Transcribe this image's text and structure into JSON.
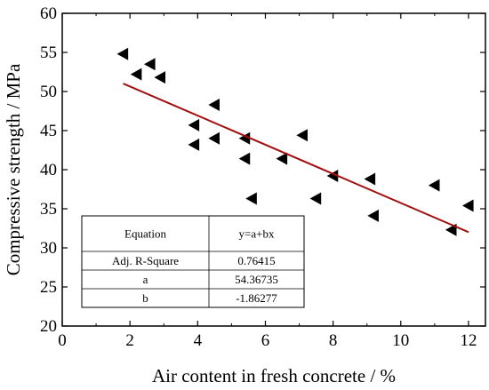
{
  "chart_data": {
    "type": "scatter",
    "xlabel": "Air content in fresh concrete / %",
    "ylabel": "Compressive strength / MPa",
    "xlim": [
      0,
      12.5
    ],
    "ylim": [
      20,
      60
    ],
    "xticks": [
      0,
      2,
      4,
      6,
      8,
      10,
      12
    ],
    "yticks": [
      20,
      25,
      30,
      35,
      40,
      45,
      50,
      55,
      60
    ],
    "grid": false,
    "marker": "left-pointing triangle",
    "marker_color": "#000000",
    "points": [
      {
        "x": 1.8,
        "y": 54.8
      },
      {
        "x": 2.2,
        "y": 52.2
      },
      {
        "x": 2.6,
        "y": 53.5
      },
      {
        "x": 2.9,
        "y": 51.8
      },
      {
        "x": 3.9,
        "y": 45.7
      },
      {
        "x": 3.9,
        "y": 43.2
      },
      {
        "x": 4.5,
        "y": 48.3
      },
      {
        "x": 4.5,
        "y": 44.0
      },
      {
        "x": 5.4,
        "y": 44.0
      },
      {
        "x": 5.4,
        "y": 41.4
      },
      {
        "x": 5.6,
        "y": 36.3
      },
      {
        "x": 6.5,
        "y": 41.4
      },
      {
        "x": 7.1,
        "y": 44.4
      },
      {
        "x": 7.5,
        "y": 36.3
      },
      {
        "x": 8.0,
        "y": 39.2
      },
      {
        "x": 9.1,
        "y": 38.8
      },
      {
        "x": 9.2,
        "y": 34.1
      },
      {
        "x": 11.0,
        "y": 38.0
      },
      {
        "x": 11.5,
        "y": 32.3
      },
      {
        "x": 12.0,
        "y": 35.4
      }
    ],
    "fit_line": {
      "x": [
        1.8,
        12.0
      ],
      "color": "#a30f0f"
    },
    "fit_table": {
      "header": [
        "Equation",
        "y=a+bx"
      ],
      "rows": [
        [
          "Adj. R-Square",
          "0.76415"
        ],
        [
          "a",
          "54.36735"
        ],
        [
          "b",
          "-1.86277"
        ]
      ]
    }
  }
}
